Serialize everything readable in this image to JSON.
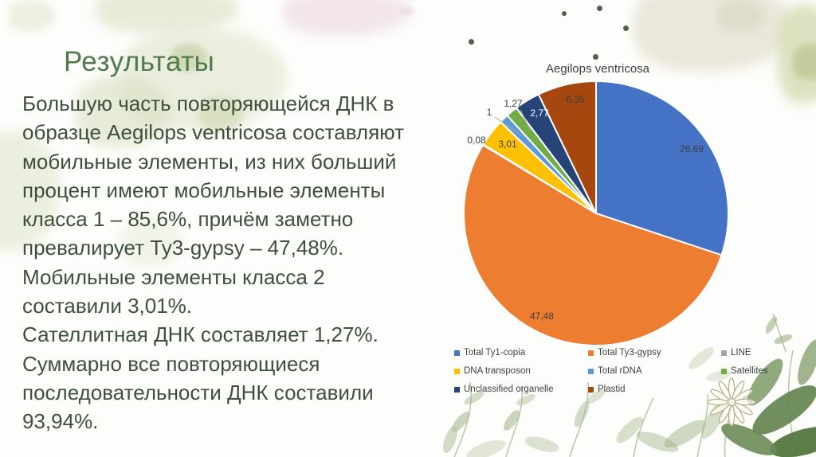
{
  "slide": {
    "title": "Результаты",
    "body_lines": [
      "Большую часть повторяющейся ДНК в",
      "образце Aegilops ventricosa составляют",
      "мобильные элементы, из них больший",
      "процент имеют мобильные элементы",
      "класса 1 – 85,6%, причём заметно",
      "превалирует Ty3-gypsy – 47,48%.",
      "Мобильные элементы класса 2",
      "составили 3,01%.",
      "Сателлитная ДНК составляет 1,27%.",
      "Суммарно все повторяющиеся",
      "последовательности ДНК составили",
      "93,94%."
    ]
  },
  "chart_data": {
    "type": "pie",
    "title": "Aegilops ventricosa",
    "legend_position": "bottom",
    "start_angle_deg": 0,
    "direction": "clockwise",
    "series": [
      {
        "name": "Total Ty1-copia",
        "value": 26.69,
        "label": "26,69",
        "color": "#4472C4",
        "label_color": "#3f3f3f",
        "label_placement": "inside"
      },
      {
        "name": "Total Ty3-gypsy",
        "value": 47.48,
        "label": "47,48",
        "color": "#ED7D31",
        "label_color": "#3f3f3f",
        "label_placement": "inside"
      },
      {
        "name": "LINE",
        "value": 0.08,
        "label": "0,08",
        "color": "#A5A5A5",
        "label_color": "#404040",
        "label_placement": "outside"
      },
      {
        "name": "DNA transposon",
        "value": 3.01,
        "label": "3,01",
        "color": "#FFC000",
        "label_color": "#3f3f3f",
        "label_placement": "inside"
      },
      {
        "name": "Total rDNA",
        "value": 1.0,
        "label": "1",
        "color": "#5B9BD5",
        "label_color": "#404040",
        "label_placement": "outside"
      },
      {
        "name": "Satellites",
        "value": 1.27,
        "label": "1,27",
        "color": "#70AD47",
        "label_color": "#404040",
        "label_placement": "outside"
      },
      {
        "name": "Unclassified organelle",
        "value": 2.77,
        "label": "2,77",
        "color": "#264478",
        "label_color": "#ffffff",
        "label_placement": "inside"
      },
      {
        "name": "Plastid",
        "value": 6.35,
        "label": "6,35",
        "color": "#A5470F",
        "label_color": "#3f3f3f",
        "label_placement": "inside"
      }
    ]
  },
  "colors": {
    "title_text": "#4e7a4e",
    "body_text": "#3f4f3d",
    "chart_text": "#404040",
    "slide_background": "#fdfdfb"
  }
}
